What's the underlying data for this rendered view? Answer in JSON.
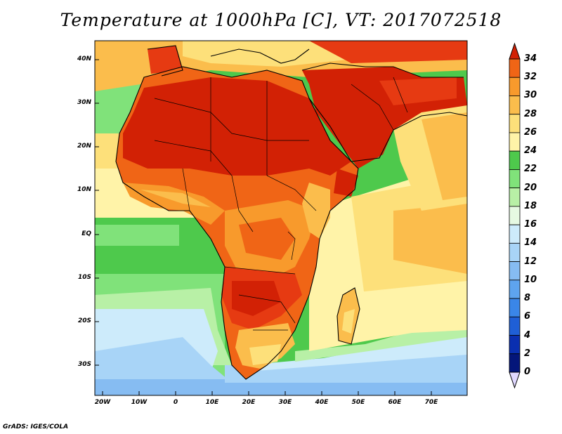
{
  "title": "Temperature at 1000hPa [C], VT: 2017072518",
  "credit": "GrADS: IGES/COLA",
  "map": {
    "region": "Africa and Middle East",
    "lon_range": [
      -22,
      80
    ],
    "lat_range": [
      -37,
      45
    ],
    "lat_labels": [
      "40N",
      "30N",
      "20N",
      "10N",
      "EQ",
      "10S",
      "20S",
      "30S"
    ],
    "lon_labels": [
      "20W",
      "10W",
      "0",
      "10E",
      "20E",
      "30E",
      "40E",
      "50E",
      "60E",
      "70E"
    ]
  },
  "colorbar": {
    "levels": [
      "0",
      "2",
      "4",
      "6",
      "8",
      "10",
      "12",
      "14",
      "16",
      "18",
      "20",
      "22",
      "24",
      "26",
      "28",
      "30",
      "32",
      "34"
    ],
    "colors": [
      "#04167a",
      "#0a2fb0",
      "#1f5fd6",
      "#3a86e8",
      "#5ea4ee",
      "#86bcf2",
      "#a8d4f7",
      "#cdebfb",
      "#e6f9e2",
      "#b8f0a6",
      "#80e27a",
      "#4ec94c",
      "#fff3a8",
      "#fde07a",
      "#fbbd4c",
      "#f89a2c",
      "#f06516",
      "#e63a12",
      "#d22105"
    ],
    "low_triangle_color": "#e0d8ff",
    "high_triangle_color": "#d22105"
  }
}
